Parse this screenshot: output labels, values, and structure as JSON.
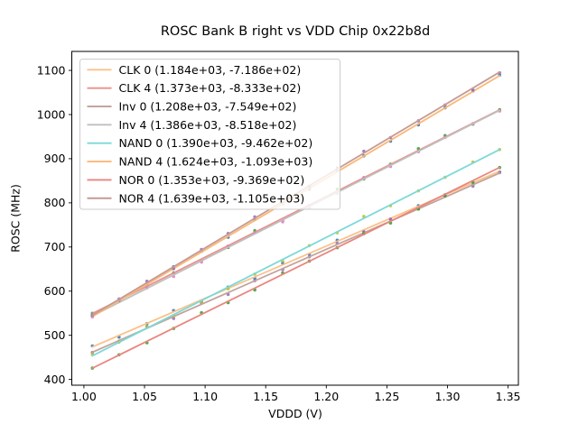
{
  "chart_data": {
    "type": "scatter",
    "title": "ROSC Bank B right vs VDD Chip 0x22b8d",
    "xlabel": "VDDD (V)",
    "ylabel": "ROSC (MHz)",
    "xlim": [
      0.99,
      1.3585
    ],
    "ylim": [
      387,
      1143
    ],
    "xticks": [
      1.0,
      1.05,
      1.1,
      1.15,
      1.2,
      1.25,
      1.3,
      1.35
    ],
    "xtick_labels": [
      "1.00",
      "1.05",
      "1.10",
      "1.15",
      "1.20",
      "1.25",
      "1.30",
      "1.35"
    ],
    "yticks": [
      400,
      500,
      600,
      700,
      800,
      900,
      1000,
      1100
    ],
    "ytick_labels": [
      "400",
      "500",
      "600",
      "700",
      "800",
      "900",
      "1000",
      "1100"
    ],
    "grid": false,
    "legend_position": "upper left",
    "x": [
      1.007,
      1.029,
      1.052,
      1.074,
      1.097,
      1.119,
      1.141,
      1.164,
      1.186,
      1.209,
      1.231,
      1.253,
      1.276,
      1.298,
      1.321,
      1.343
    ],
    "series": [
      {
        "name": "CLK 0",
        "label": "CLK 0 (1.184e+03, -7.186e+02)",
        "slope": 1184,
        "intercept": -718.6,
        "line_color": "#fbc18a",
        "marker_color": "#1f77b4"
      },
      {
        "name": "CLK 4",
        "label": "CLK 4 (1.373e+03, -8.333e+02)",
        "slope": 1373,
        "intercept": -833.3,
        "line_color": "#ea918b",
        "marker_color": "#2ca02c"
      },
      {
        "name": "Inv 0",
        "label": "Inv 0 (1.208e+03, -7.549e+02)",
        "slope": 1208,
        "intercept": -754.9,
        "line_color": "#c3a49d",
        "marker_color": "#9467bd"
      },
      {
        "name": "Inv 4",
        "label": "Inv 4 (1.386e+03, -8.518e+02)",
        "slope": 1386,
        "intercept": -851.8,
        "line_color": "#bfbfbf",
        "marker_color": "#e377c2"
      },
      {
        "name": "NAND 0",
        "label": "NAND 0 (1.390e+03, -9.462e+02)",
        "slope": 1390,
        "intercept": -946.2,
        "line_color": "#7bd9d9",
        "marker_color": "#bcbd22"
      },
      {
        "name": "NAND 4",
        "label": "NAND 4 (1.624e+03, -1.093e+03)",
        "slope": 1624,
        "intercept": -1093.0,
        "line_color": "#fbb878",
        "marker_color": "#1f77b4"
      },
      {
        "name": "NOR 0",
        "label": "NOR 0 (1.353e+03, -9.369e+02)",
        "slope": 1353,
        "intercept": -936.9,
        "line_color": "#e9867e",
        "marker_color": "#2ca02c"
      },
      {
        "name": "NOR 4",
        "label": "NOR 4 (1.639e+03, -1.105e+03)",
        "slope": 1639,
        "intercept": -1105.0,
        "line_color": "#c59c94",
        "marker_color": "#9467bd"
      }
    ],
    "frame_color": "#000000",
    "legend_border_color": "#cccccc"
  }
}
